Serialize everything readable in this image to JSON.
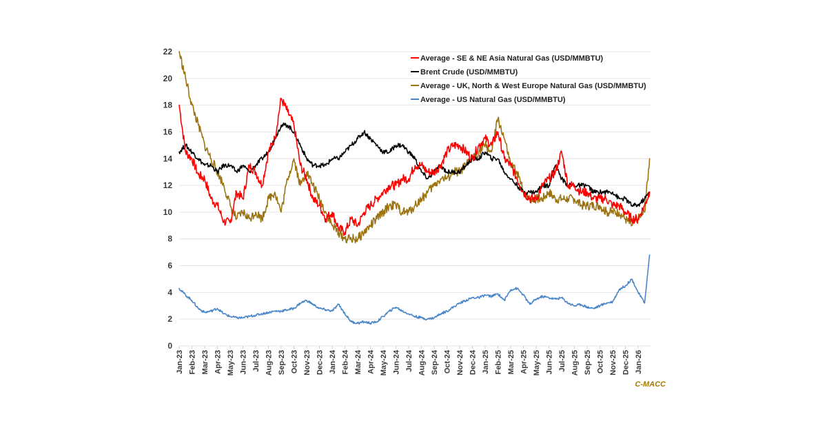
{
  "chart_data": {
    "type": "line",
    "title": "",
    "xlabel": "",
    "ylabel": "",
    "ylim": [
      0,
      22
    ],
    "yticks": [
      0,
      2,
      4,
      6,
      8,
      10,
      12,
      14,
      16,
      18,
      20,
      22
    ],
    "grid": true,
    "legend_position": "top-right",
    "x_unit": "months since Jan-23",
    "categories": [
      "Jan-23",
      "Feb-23",
      "Mar-23",
      "Apr-23",
      "May-23",
      "Jun-23",
      "Jul-23",
      "Aug-23",
      "Sep-23",
      "Oct-23",
      "Nov-23",
      "Dec-23",
      "Jan-24",
      "Feb-24",
      "Mar-24",
      "Apr-24",
      "May-24",
      "Jun-24",
      "Jul-24",
      "Aug-24",
      "Sep-24",
      "Oct-24",
      "Nov-24",
      "Dec-24",
      "Jan-25",
      "Feb-25",
      "Mar-25",
      "Apr-25",
      "May-25",
      "Jun-25",
      "Jul-25",
      "Aug-25",
      "Sep-25",
      "Oct-25",
      "Nov-25",
      "Dec-25",
      "Jan-26"
    ],
    "x": [
      0,
      0.5,
      1,
      1.5,
      2,
      2.5,
      3,
      3.5,
      4,
      4.5,
      5,
      5.5,
      6,
      6.5,
      7,
      7.5,
      8,
      8.5,
      9,
      9.5,
      10,
      10.5,
      11,
      11.5,
      12,
      12.5,
      13,
      13.5,
      14,
      14.5,
      15,
      15.5,
      16,
      16.5,
      17,
      17.5,
      18,
      18.5,
      19,
      19.5,
      20,
      20.5,
      21,
      21.5,
      22,
      22.5,
      23,
      23.5,
      24,
      24.5,
      25,
      25.5,
      26,
      26.5,
      27,
      27.5,
      28,
      28.5,
      29,
      29.5,
      30,
      30.5,
      31,
      31.5,
      32,
      32.5,
      33,
      33.5,
      34,
      34.5,
      35,
      35.5,
      36,
      36.5,
      36.9
    ],
    "series": [
      {
        "name": "Average - SE & NE Asia Natural Gas (USD/MMBTU)",
        "color": "#ff0000",
        "values": [
          18.0,
          14.5,
          14.0,
          12.8,
          12.5,
          11.0,
          10.5,
          9.3,
          9.2,
          11.5,
          11.0,
          13.5,
          13.0,
          12.0,
          14.5,
          15.5,
          18.5,
          17.5,
          16.5,
          13.5,
          12.5,
          11.0,
          10.5,
          9.5,
          10.0,
          8.8,
          8.5,
          9.5,
          9.0,
          10.0,
          10.5,
          11.0,
          11.5,
          12.0,
          12.0,
          12.5,
          12.5,
          13.5,
          13.5,
          13.0,
          13.0,
          13.5,
          14.5,
          15.0,
          15.0,
          14.5,
          14.0,
          15.0,
          15.5,
          15.0,
          16.0,
          14.0,
          13.5,
          12.5,
          11.5,
          11.0,
          11.0,
          12.0,
          12.5,
          13.0,
          14.5,
          12.0,
          12.0,
          11.5,
          11.5,
          11.0,
          11.0,
          11.0,
          10.5,
          10.5,
          10.0,
          9.5,
          9.5,
          10.5,
          11.5
        ]
      },
      {
        "name": "Brent Crude (USD/MMBTU)",
        "color": "#000000",
        "values": [
          14.5,
          15.0,
          14.5,
          14.0,
          13.5,
          13.5,
          13.0,
          13.5,
          13.5,
          13.0,
          13.5,
          13.0,
          13.5,
          14.0,
          14.5,
          15.5,
          16.5,
          16.5,
          16.0,
          15.0,
          14.0,
          13.5,
          13.5,
          13.5,
          14.0,
          14.0,
          14.5,
          15.0,
          15.5,
          16.0,
          15.5,
          15.0,
          14.5,
          14.5,
          15.0,
          15.0,
          14.5,
          14.0,
          13.0,
          12.5,
          13.0,
          13.5,
          13.0,
          13.0,
          13.0,
          13.5,
          14.0,
          14.0,
          14.5,
          14.0,
          14.0,
          13.0,
          12.5,
          12.0,
          11.5,
          11.5,
          11.5,
          12.0,
          12.0,
          13.5,
          12.5,
          12.0,
          12.0,
          12.0,
          12.0,
          11.5,
          11.5,
          11.5,
          11.5,
          11.0,
          11.0,
          10.5,
          10.5,
          11.0,
          11.5
        ]
      },
      {
        "name": "Average - UK, North & West Europe Natural Gas (USD/MMBTU)",
        "color": "#9c7412",
        "values": [
          22.0,
          20.0,
          18.0,
          16.5,
          15.0,
          14.0,
          13.0,
          12.0,
          10.5,
          9.5,
          10.0,
          9.5,
          10.0,
          9.5,
          11.0,
          11.5,
          10.0,
          12.5,
          14.0,
          12.0,
          13.0,
          12.0,
          11.0,
          10.0,
          9.0,
          8.5,
          8.0,
          8.0,
          8.0,
          8.5,
          9.0,
          9.5,
          10.0,
          10.5,
          10.5,
          10.0,
          10.0,
          10.5,
          11.0,
          11.5,
          12.0,
          12.5,
          12.5,
          13.0,
          13.0,
          13.5,
          14.0,
          14.5,
          15.0,
          14.5,
          17.0,
          15.5,
          13.5,
          13.0,
          11.5,
          11.0,
          11.0,
          11.0,
          11.5,
          11.0,
          11.0,
          11.0,
          11.0,
          10.5,
          10.5,
          10.5,
          10.5,
          10.0,
          10.0,
          10.0,
          9.5,
          9.0,
          9.5,
          10.0,
          14.0
        ]
      },
      {
        "name": "Average - US Natural Gas (USD/MMBTU)",
        "color": "#4a86c8",
        "values": [
          4.3,
          3.8,
          3.4,
          2.8,
          2.5,
          2.6,
          2.8,
          2.4,
          2.2,
          2.1,
          2.1,
          2.2,
          2.3,
          2.4,
          2.5,
          2.6,
          2.6,
          2.7,
          2.8,
          3.2,
          3.4,
          3.1,
          2.8,
          2.7,
          2.6,
          3.1,
          2.4,
          1.8,
          1.7,
          1.8,
          1.7,
          1.8,
          2.2,
          2.6,
          2.9,
          2.6,
          2.4,
          2.2,
          2.1,
          2.0,
          2.1,
          2.4,
          2.6,
          2.9,
          3.2,
          3.4,
          3.6,
          3.6,
          3.8,
          3.7,
          3.9,
          3.4,
          4.2,
          4.3,
          3.8,
          3.1,
          3.5,
          3.7,
          3.6,
          3.5,
          3.6,
          3.2,
          3.0,
          3.1,
          2.9,
          2.8,
          3.0,
          3.2,
          3.3,
          4.2,
          4.5,
          5.0,
          4.0,
          3.2,
          6.8
        ]
      }
    ]
  },
  "legend": {
    "items": [
      {
        "label": "Average - SE & NE Asia Natural Gas (USD/MMBTU)",
        "color": "#ff0000"
      },
      {
        "label": "Brent Crude (USD/MMBTU)",
        "color": "#000000"
      },
      {
        "label": "Average - UK, North & West Europe Natural Gas (USD/MMBTU)",
        "color": "#9c7412"
      },
      {
        "label": "Average - US Natural Gas (USD/MMBTU)",
        "color": "#4a86c8"
      }
    ]
  },
  "watermark": {
    "text": "C-MACC",
    "color": "#a67c00"
  }
}
